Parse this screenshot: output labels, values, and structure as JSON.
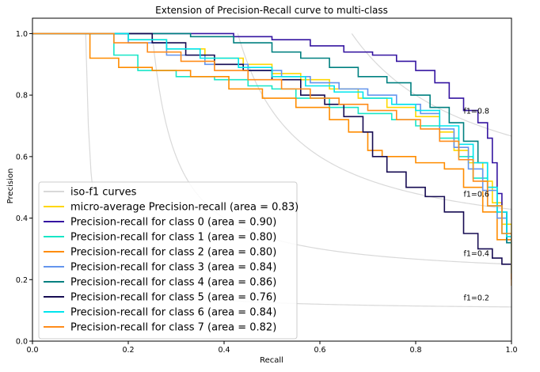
{
  "chart_data": {
    "type": "line",
    "title": "Extension of Precision-Recall curve to multi-class",
    "xlabel": "Recall",
    "ylabel": "Precision",
    "xlim": [
      0.0,
      1.0
    ],
    "ylim": [
      0.0,
      1.05
    ],
    "xticks": [
      "0.0",
      "0.2",
      "0.4",
      "0.6",
      "0.8",
      "1.0"
    ],
    "yticks": [
      "0.0",
      "0.2",
      "0.4",
      "0.6",
      "0.8",
      "1.0"
    ],
    "grid": false,
    "legend_position": "lower-left",
    "iso_f1": {
      "legend_label": "iso-f1 curves",
      "color": "#d9d9d9",
      "values": [
        0.2,
        0.4,
        0.6,
        0.8
      ],
      "labels": [
        "f1=0.2",
        "f1=0.4",
        "f1=0.6",
        "f1=0.8"
      ]
    },
    "series": [
      {
        "name": "micro-average Precision-recall (area = 0.83)",
        "color": "#ffd700",
        "points": [
          [
            0,
            1.0
          ],
          [
            0.13,
            1.0
          ],
          [
            0.2,
            0.98
          ],
          [
            0.28,
            0.95
          ],
          [
            0.36,
            0.92
          ],
          [
            0.44,
            0.9
          ],
          [
            0.5,
            0.87
          ],
          [
            0.56,
            0.85
          ],
          [
            0.62,
            0.82
          ],
          [
            0.68,
            0.79
          ],
          [
            0.74,
            0.76
          ],
          [
            0.8,
            0.73
          ],
          [
            0.85,
            0.68
          ],
          [
            0.88,
            0.62
          ],
          [
            0.91,
            0.58
          ],
          [
            0.94,
            0.52
          ],
          [
            0.96,
            0.45
          ],
          [
            0.98,
            0.38
          ],
          [
            1.0,
            0.24
          ]
        ]
      },
      {
        "name": "Precision-recall for class 0 (area = 0.90)",
        "color": "#3515a1",
        "points": [
          [
            0,
            1.0
          ],
          [
            0.25,
            1.0
          ],
          [
            0.42,
            0.99
          ],
          [
            0.5,
            0.98
          ],
          [
            0.58,
            0.96
          ],
          [
            0.65,
            0.94
          ],
          [
            0.71,
            0.93
          ],
          [
            0.76,
            0.91
          ],
          [
            0.8,
            0.88
          ],
          [
            0.84,
            0.84
          ],
          [
            0.87,
            0.79
          ],
          [
            0.9,
            0.75
          ],
          [
            0.93,
            0.71
          ],
          [
            0.95,
            0.66
          ],
          [
            0.96,
            0.58
          ],
          [
            0.97,
            0.48
          ],
          [
            0.98,
            0.42
          ],
          [
            0.99,
            0.33
          ],
          [
            1.0,
            0.2
          ]
        ]
      },
      {
        "name": "Precision-recall for class 1 (area = 0.80)",
        "color": "#18e6c7",
        "points": [
          [
            0,
            1.0
          ],
          [
            0.13,
            1.0
          ],
          [
            0.17,
            0.93
          ],
          [
            0.22,
            0.88
          ],
          [
            0.3,
            0.86
          ],
          [
            0.38,
            0.85
          ],
          [
            0.45,
            0.83
          ],
          [
            0.5,
            0.82
          ],
          [
            0.55,
            0.79
          ],
          [
            0.62,
            0.76
          ],
          [
            0.68,
            0.74
          ],
          [
            0.75,
            0.72
          ],
          [
            0.8,
            0.7
          ],
          [
            0.85,
            0.66
          ],
          [
            0.89,
            0.6
          ],
          [
            0.92,
            0.53
          ],
          [
            0.95,
            0.44
          ],
          [
            0.98,
            0.35
          ],
          [
            1.0,
            0.24
          ]
        ]
      },
      {
        "name": "Precision-recall for class 2 (area = 0.80)",
        "color": "#ff8c00",
        "points": [
          [
            0,
            1.0
          ],
          [
            0.1,
            1.0
          ],
          [
            0.12,
            0.92
          ],
          [
            0.18,
            0.89
          ],
          [
            0.25,
            0.88
          ],
          [
            0.33,
            0.86
          ],
          [
            0.41,
            0.82
          ],
          [
            0.48,
            0.79
          ],
          [
            0.55,
            0.76
          ],
          [
            0.62,
            0.72
          ],
          [
            0.66,
            0.68
          ],
          [
            0.7,
            0.62
          ],
          [
            0.73,
            0.6
          ],
          [
            0.8,
            0.58
          ],
          [
            0.86,
            0.56
          ],
          [
            0.9,
            0.5
          ],
          [
            0.94,
            0.42
          ],
          [
            0.97,
            0.33
          ],
          [
            1.0,
            0.18
          ]
        ]
      },
      {
        "name": "Precision-recall for class 3 (area = 0.84)",
        "color": "#6495ed",
        "points": [
          [
            0,
            1.0
          ],
          [
            0.12,
            1.0
          ],
          [
            0.2,
            0.97
          ],
          [
            0.28,
            0.93
          ],
          [
            0.36,
            0.9
          ],
          [
            0.45,
            0.88
          ],
          [
            0.52,
            0.86
          ],
          [
            0.58,
            0.84
          ],
          [
            0.64,
            0.82
          ],
          [
            0.7,
            0.8
          ],
          [
            0.76,
            0.77
          ],
          [
            0.81,
            0.74
          ],
          [
            0.85,
            0.69
          ],
          [
            0.88,
            0.63
          ],
          [
            0.91,
            0.56
          ],
          [
            0.94,
            0.49
          ],
          [
            0.97,
            0.4
          ],
          [
            0.99,
            0.32
          ],
          [
            1.0,
            0.22
          ]
        ]
      },
      {
        "name": "Precision-recall for class 4 (area = 0.86)",
        "color": "#008080",
        "points": [
          [
            0,
            1.0
          ],
          [
            0.2,
            1.0
          ],
          [
            0.33,
            0.99
          ],
          [
            0.42,
            0.97
          ],
          [
            0.5,
            0.94
          ],
          [
            0.56,
            0.92
          ],
          [
            0.62,
            0.89
          ],
          [
            0.68,
            0.86
          ],
          [
            0.74,
            0.84
          ],
          [
            0.79,
            0.8
          ],
          [
            0.83,
            0.76
          ],
          [
            0.87,
            0.71
          ],
          [
            0.9,
            0.65
          ],
          [
            0.93,
            0.58
          ],
          [
            0.95,
            0.5
          ],
          [
            0.97,
            0.42
          ],
          [
            0.99,
            0.32
          ],
          [
            1.0,
            0.22
          ]
        ]
      },
      {
        "name": "Precision-recall for class 5 (area = 0.76)",
        "color": "#160b52",
        "points": [
          [
            0,
            1.0
          ],
          [
            0.18,
            1.0
          ],
          [
            0.25,
            0.97
          ],
          [
            0.32,
            0.93
          ],
          [
            0.38,
            0.9
          ],
          [
            0.44,
            0.88
          ],
          [
            0.5,
            0.85
          ],
          [
            0.56,
            0.8
          ],
          [
            0.61,
            0.77
          ],
          [
            0.65,
            0.73
          ],
          [
            0.69,
            0.68
          ],
          [
            0.71,
            0.6
          ],
          [
            0.74,
            0.55
          ],
          [
            0.78,
            0.5
          ],
          [
            0.82,
            0.47
          ],
          [
            0.86,
            0.42
          ],
          [
            0.9,
            0.35
          ],
          [
            0.93,
            0.3
          ],
          [
            0.96,
            0.27
          ],
          [
            0.98,
            0.25
          ],
          [
            1.0,
            0.22
          ]
        ]
      },
      {
        "name": "Precision-recall for class 6 (area = 0.84)",
        "color": "#00e5ee",
        "points": [
          [
            0,
            1.0
          ],
          [
            0.14,
            1.0
          ],
          [
            0.2,
            0.98
          ],
          [
            0.28,
            0.95
          ],
          [
            0.35,
            0.92
          ],
          [
            0.43,
            0.89
          ],
          [
            0.5,
            0.86
          ],
          [
            0.57,
            0.83
          ],
          [
            0.63,
            0.81
          ],
          [
            0.69,
            0.79
          ],
          [
            0.75,
            0.77
          ],
          [
            0.8,
            0.75
          ],
          [
            0.85,
            0.7
          ],
          [
            0.89,
            0.64
          ],
          [
            0.92,
            0.58
          ],
          [
            0.95,
            0.5
          ],
          [
            0.97,
            0.42
          ],
          [
            0.99,
            0.34
          ],
          [
            1.0,
            0.22
          ]
        ]
      },
      {
        "name": "Precision-recall for class 7 (area = 0.82)",
        "color": "#ff8c1a",
        "points": [
          [
            0,
            1.0
          ],
          [
            0.11,
            1.0
          ],
          [
            0.17,
            0.97
          ],
          [
            0.24,
            0.94
          ],
          [
            0.31,
            0.91
          ],
          [
            0.38,
            0.88
          ],
          [
            0.45,
            0.85
          ],
          [
            0.52,
            0.82
          ],
          [
            0.58,
            0.79
          ],
          [
            0.64,
            0.77
          ],
          [
            0.7,
            0.75
          ],
          [
            0.76,
            0.72
          ],
          [
            0.81,
            0.69
          ],
          [
            0.85,
            0.65
          ],
          [
            0.89,
            0.59
          ],
          [
            0.92,
            0.52
          ],
          [
            0.95,
            0.44
          ],
          [
            0.98,
            0.35
          ],
          [
            1.0,
            0.2
          ]
        ]
      }
    ]
  }
}
